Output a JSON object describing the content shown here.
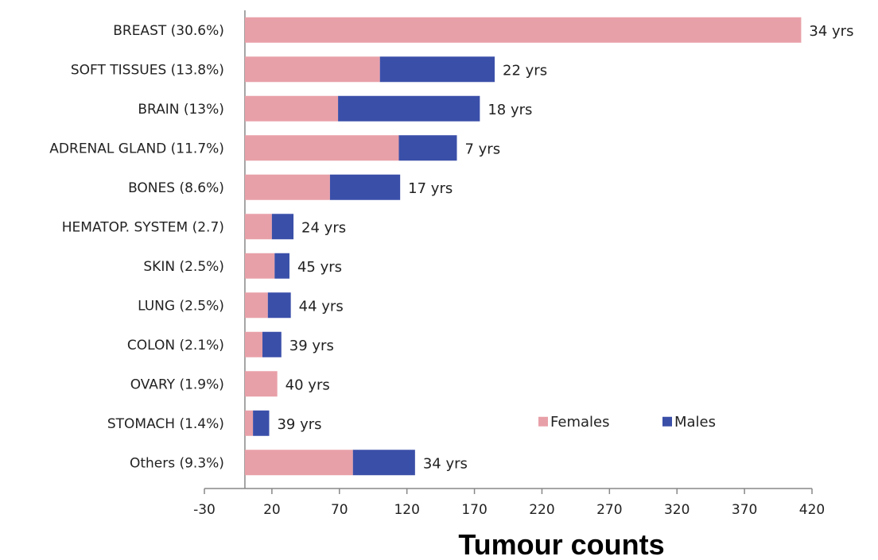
{
  "chart_data": {
    "type": "bar",
    "orientation": "horizontal",
    "stacked": true,
    "categories": [
      "BREAST (30.6%)",
      "SOFT TISSUES (13.8%)",
      "BRAIN (13%)",
      "ADRENAL GLAND (11.7%)",
      "BONES (8.6%)",
      "HEMATOP. SYSTEM (2.7)",
      "SKIN (2.5%)",
      "LUNG (2.5%)",
      "COLON (2.1%)",
      "OVARY (1.9%)",
      "STOMACH (1.4%)",
      "Others (9.3%)"
    ],
    "series": [
      {
        "name": "Females",
        "color": "#e8a0a8",
        "values": [
          412,
          100,
          69,
          114,
          63,
          20,
          22,
          17,
          13,
          24,
          6,
          80
        ]
      },
      {
        "name": "Males",
        "color": "#3a4fa8",
        "values": [
          0,
          85,
          105,
          43,
          52,
          16,
          11,
          17,
          14,
          0,
          12,
          46
        ]
      }
    ],
    "data_labels": [
      "34 yrs",
      "22 yrs",
      "18 yrs",
      "7 yrs",
      "17 yrs",
      "24 yrs",
      "45 yrs",
      "44 yrs",
      "39 yrs",
      "40 yrs",
      "39 yrs",
      "34 yrs"
    ],
    "xlabel": "Tumour counts",
    "ylabel": "",
    "title": "",
    "xlim": [
      -30,
      420
    ],
    "xticks": [
      -30,
      20,
      70,
      120,
      170,
      220,
      270,
      320,
      370,
      420
    ],
    "grid": false,
    "legend": "inside-lower-right"
  }
}
